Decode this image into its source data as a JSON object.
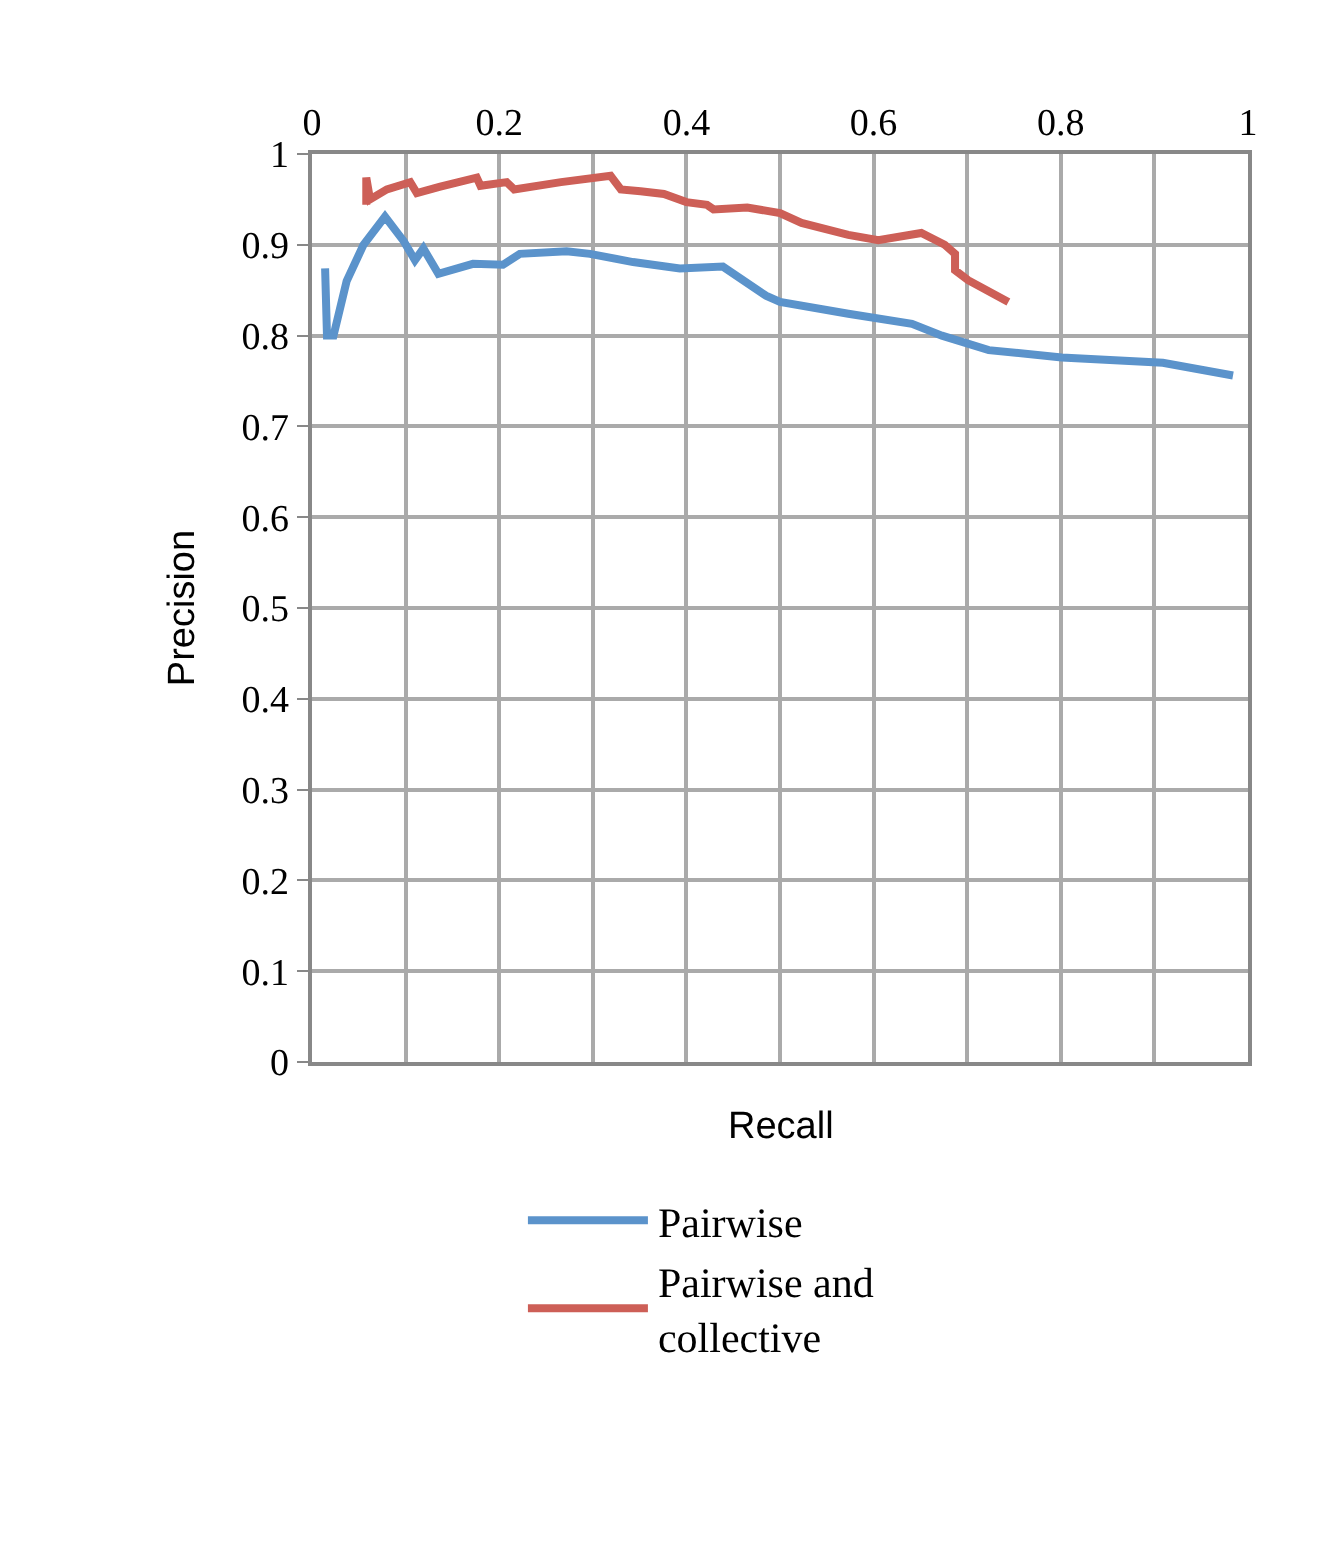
{
  "chart_data": {
    "type": "line",
    "xlabel": "Recall",
    "ylabel": "Precision",
    "xlim": [
      0,
      1
    ],
    "ylim": [
      0,
      1
    ],
    "xticks": [
      0,
      {
        "value": 0.1,
        "label": null
      },
      0.2,
      {
        "value": 0.3,
        "label": null
      },
      0.4,
      {
        "value": 0.5,
        "label": null
      },
      0.6,
      {
        "value": 0.7,
        "label": null
      },
      0.8,
      {
        "value": 0.9,
        "label": null
      },
      1
    ],
    "yticks": [
      0,
      0.1,
      0.2,
      0.3,
      0.4,
      0.5,
      0.6,
      0.7,
      0.8,
      0.9,
      1
    ],
    "grid": true,
    "legend": "bottom",
    "marker": "none",
    "line_style": "solid",
    "series": [
      {
        "name": "Pairwise",
        "color": "#5b93cb",
        "x": [
          0.014,
          0.016,
          0.023,
          0.037,
          0.055,
          0.078,
          0.098,
          0.11,
          0.119,
          0.135,
          0.172,
          0.204,
          0.222,
          0.272,
          0.297,
          0.343,
          0.393,
          0.439,
          0.485,
          0.5,
          0.573,
          0.641,
          0.673,
          0.723,
          0.801,
          0.909,
          0.984
        ],
        "values": [
          0.874,
          0.8,
          0.8,
          0.86,
          0.9,
          0.931,
          0.904,
          0.883,
          0.896,
          0.868,
          0.879,
          0.878,
          0.89,
          0.893,
          0.89,
          0.881,
          0.874,
          0.876,
          0.844,
          0.837,
          0.824,
          0.813,
          0.8,
          0.784,
          0.776,
          0.77,
          0.756
        ]
      },
      {
        "name": "Pairwise and collective",
        "color": "#cd5f57",
        "x": [
          0.058,
          0.058,
          0.062,
          0.08,
          0.105,
          0.112,
          0.137,
          0.176,
          0.18,
          0.208,
          0.216,
          0.266,
          0.319,
          0.33,
          0.351,
          0.376,
          0.4,
          0.422,
          0.429,
          0.465,
          0.5,
          0.523,
          0.573,
          0.605,
          0.651,
          0.676,
          0.687,
          0.687,
          0.701,
          0.744
        ],
        "values": [
          0.944,
          0.974,
          0.95,
          0.961,
          0.969,
          0.957,
          0.964,
          0.974,
          0.965,
          0.969,
          0.961,
          0.969,
          0.976,
          0.961,
          0.959,
          0.956,
          0.947,
          0.944,
          0.939,
          0.941,
          0.935,
          0.924,
          0.911,
          0.905,
          0.913,
          0.9,
          0.89,
          0.872,
          0.861,
          0.837
        ]
      }
    ]
  }
}
